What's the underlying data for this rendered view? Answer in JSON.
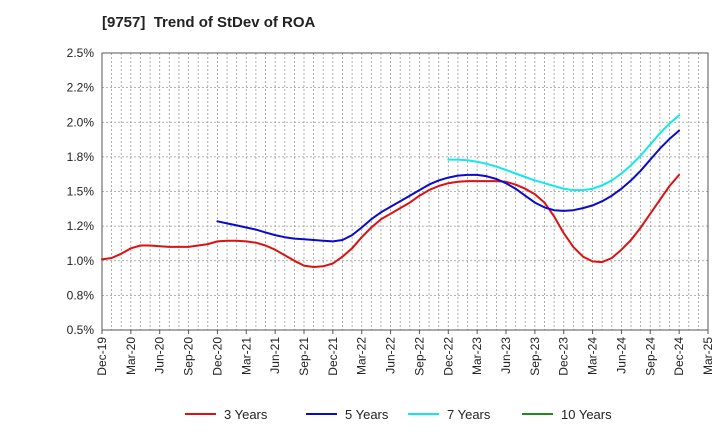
{
  "chart_data": {
    "type": "line",
    "title": "[9757]  Trend of StDev of ROA",
    "xlabel": "",
    "ylabel": "",
    "ylim": [
      0.5,
      2.5
    ],
    "y_ticks": [
      "0.5%",
      "0.8%",
      "1.0%",
      "1.2%",
      "1.5%",
      "1.8%",
      "2.0%",
      "2.2%",
      "2.5%"
    ],
    "x_ticks": [
      "Dec-19",
      "Mar-20",
      "Jun-20",
      "Sep-20",
      "Dec-20",
      "Mar-21",
      "Jun-21",
      "Sep-21",
      "Dec-21",
      "Mar-22",
      "Jun-22",
      "Sep-22",
      "Dec-22",
      "Mar-23",
      "Jun-23",
      "Sep-23",
      "Dec-23",
      "Mar-24",
      "Jun-24",
      "Sep-24",
      "Dec-24",
      "Mar-25"
    ],
    "grid": true,
    "legend_position": "bottom",
    "series": [
      {
        "name": "3 Years",
        "color": "#dd1111",
        "x": [
          "Dec-19",
          "Jan-20",
          "Feb-20",
          "Mar-20",
          "Apr-20",
          "May-20",
          "Jun-20",
          "Jul-20",
          "Aug-20",
          "Sep-20",
          "Oct-20",
          "Nov-20",
          "Dec-20",
          "Jan-21",
          "Feb-21",
          "Mar-21",
          "Apr-21",
          "May-21",
          "Jun-21",
          "Jul-21",
          "Aug-21",
          "Sep-21",
          "Oct-21",
          "Nov-21",
          "Dec-21",
          "Jan-22",
          "Feb-22",
          "Mar-22",
          "Apr-22",
          "May-22",
          "Jun-22",
          "Jul-22",
          "Aug-22",
          "Sep-22",
          "Oct-22",
          "Nov-22",
          "Dec-22",
          "Jan-23",
          "Feb-23",
          "Mar-23",
          "Apr-23",
          "May-23",
          "Jun-23",
          "Jul-23",
          "Aug-23",
          "Sep-23",
          "Oct-23",
          "Nov-23",
          "Dec-23",
          "Jan-24",
          "Feb-24",
          "Mar-24",
          "Apr-24",
          "May-24",
          "Jun-24",
          "Jul-24",
          "Aug-24",
          "Sep-24",
          "Oct-24",
          "Nov-24",
          "Dec-24"
        ],
        "values": [
          1.01,
          1.02,
          1.05,
          1.09,
          1.11,
          1.11,
          1.105,
          1.1,
          1.1,
          1.1,
          1.11,
          1.12,
          1.14,
          1.145,
          1.145,
          1.14,
          1.13,
          1.11,
          1.08,
          1.04,
          1.0,
          0.965,
          0.955,
          0.96,
          0.98,
          1.03,
          1.09,
          1.17,
          1.24,
          1.3,
          1.34,
          1.38,
          1.42,
          1.47,
          1.51,
          1.54,
          1.56,
          1.57,
          1.575,
          1.575,
          1.575,
          1.575,
          1.57,
          1.55,
          1.52,
          1.48,
          1.42,
          1.32,
          1.2,
          1.1,
          1.03,
          0.995,
          0.99,
          1.02,
          1.08,
          1.15,
          1.24,
          1.34,
          1.44,
          1.54,
          1.62
        ]
      },
      {
        "name": "5 Years",
        "color": "#0a0acc",
        "x": [
          "Dec-20",
          "Jan-21",
          "Feb-21",
          "Mar-21",
          "Apr-21",
          "May-21",
          "Jun-21",
          "Jul-21",
          "Aug-21",
          "Sep-21",
          "Oct-21",
          "Nov-21",
          "Dec-21",
          "Jan-22",
          "Feb-22",
          "Mar-22",
          "Apr-22",
          "May-22",
          "Jun-22",
          "Jul-22",
          "Aug-22",
          "Sep-22",
          "Oct-22",
          "Nov-22",
          "Dec-22",
          "Jan-23",
          "Feb-23",
          "Mar-23",
          "Apr-23",
          "May-23",
          "Jun-23",
          "Jul-23",
          "Aug-23",
          "Sep-23",
          "Oct-23",
          "Nov-23",
          "Dec-23",
          "Jan-24",
          "Feb-24",
          "Mar-24",
          "Apr-24",
          "May-24",
          "Jun-24",
          "Jul-24",
          "Aug-24",
          "Sep-24",
          "Oct-24",
          "Nov-24",
          "Dec-24"
        ],
        "values": [
          1.285,
          1.27,
          1.255,
          1.24,
          1.225,
          1.205,
          1.185,
          1.17,
          1.16,
          1.155,
          1.15,
          1.145,
          1.14,
          1.15,
          1.185,
          1.24,
          1.3,
          1.35,
          1.39,
          1.43,
          1.47,
          1.51,
          1.55,
          1.58,
          1.6,
          1.615,
          1.62,
          1.62,
          1.61,
          1.59,
          1.56,
          1.52,
          1.47,
          1.42,
          1.385,
          1.365,
          1.36,
          1.365,
          1.38,
          1.4,
          1.43,
          1.47,
          1.52,
          1.58,
          1.65,
          1.73,
          1.81,
          1.88,
          1.94
        ]
      },
      {
        "name": "7 Years",
        "color": "#11e8ee",
        "x": [
          "Dec-22",
          "Jan-23",
          "Feb-23",
          "Mar-23",
          "Apr-23",
          "May-23",
          "Jun-23",
          "Jul-23",
          "Aug-23",
          "Sep-23",
          "Oct-23",
          "Nov-23",
          "Dec-23",
          "Jan-24",
          "Feb-24",
          "Mar-24",
          "Apr-24",
          "May-24",
          "Jun-24",
          "Jul-24",
          "Aug-24",
          "Sep-24",
          "Oct-24",
          "Nov-24",
          "Dec-24"
        ],
        "values": [
          1.73,
          1.73,
          1.725,
          1.715,
          1.7,
          1.68,
          1.655,
          1.63,
          1.605,
          1.58,
          1.56,
          1.54,
          1.52,
          1.51,
          1.51,
          1.52,
          1.545,
          1.58,
          1.63,
          1.69,
          1.76,
          1.84,
          1.92,
          1.99,
          2.05
        ]
      },
      {
        "name": "10 Years",
        "color": "#228822",
        "x": [],
        "values": []
      }
    ]
  }
}
